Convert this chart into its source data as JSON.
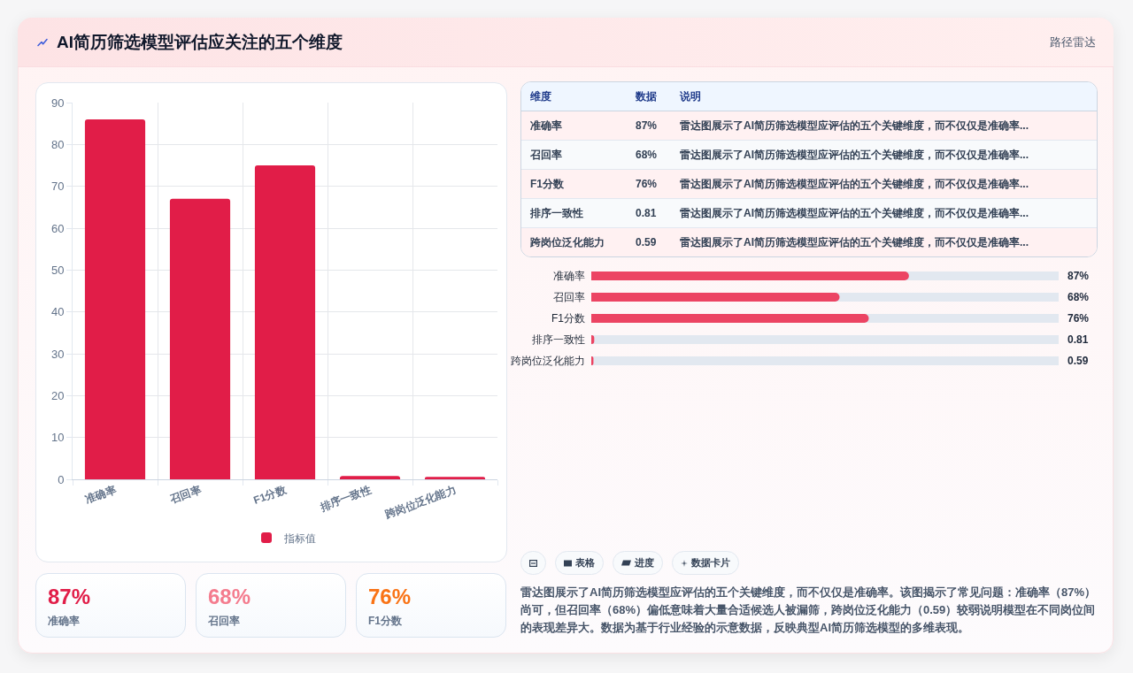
{
  "chart_data": [
    {
      "type": "other",
      "title": "AI简历筛选模型评估应关注的五个维度",
      "annotations": [
        "路径雷达"
      ]
    },
    {
      "type": "bar",
      "categories": [
        "准确率",
        "召回率",
        "F1分数",
        "排序一致性",
        "跨岗位泛化能力"
      ],
      "series": [
        {
          "name": "指标值",
          "color": "#e11d48",
          "values": [
            86,
            67,
            75,
            0.8,
            0.6
          ]
        }
      ],
      "ylim": [
        0,
        90
      ],
      "yticks": [
        0,
        10,
        20,
        30,
        40,
        50,
        60,
        70,
        80,
        90
      ],
      "grid": true,
      "legend": "bottom"
    },
    {
      "type": "other",
      "categories": [
        "维度",
        "数据",
        "说明"
      ],
      "cell_labels": [
        [
          "准确率",
          "87%",
          "雷达图展示了AI简历筛选模型应评估的五个关键维度，而不仅仅是准确率..."
        ],
        [
          "召回率",
          "68%",
          "雷达图展示了AI简历筛选模型应评估的五个关键维度，而不仅仅是准确率..."
        ],
        [
          "F1分数",
          "76%",
          "雷达图展示了AI简历筛选模型应评估的五个关键维度，而不仅仅是准确率..."
        ],
        [
          "排序一致性",
          "0.81",
          "雷达图展示了AI简历筛选模型应评估的五个关键维度，而不仅仅是准确率..."
        ],
        [
          "跨岗位泛化能力",
          "0.59",
          "雷达图展示了AI简历筛选模型应评估的五个关键维度，而不仅仅是准确率..."
        ]
      ]
    },
    {
      "type": "bar",
      "orientation": "horizontal",
      "categories": [
        "准确率",
        "召回率",
        "F1分数",
        "排序一致性",
        "跨岗位泛化能力"
      ],
      "values": [
        87,
        68,
        76,
        0.81,
        0.59
      ],
      "color": "#ec4463",
      "value_labels": [
        "87%",
        "68%",
        "76%",
        "0.81",
        "0.59"
      ],
      "xlim": [
        0,
        128
      ],
      "tick_labels": "y"
    },
    {
      "type": "other",
      "categories": [
        "准确率",
        "召回率",
        "F1分数"
      ],
      "value_labels": [
        "87%",
        "68%",
        "76%"
      ]
    },
    {
      "type": "other",
      "categories": [
        null,
        "表格",
        "进度",
        "数据卡片"
      ],
      "annotations": [
        "雷达图展示了AI简历筛选模型应评估的五个关键维度，而不仅仅是准确率。该图揭示了常见问题：准确率（87%）尚可，但召回率（68%）偏低意味着大量合适候选人被漏筛，跨岗位泛化能力（0.59）较弱说明模型在不同岗位间的表现差异大。数据为基于行业经验的示意数据，反映典型AI简历筛选模型的多维表现。"
      ]
    }
  ]
}
